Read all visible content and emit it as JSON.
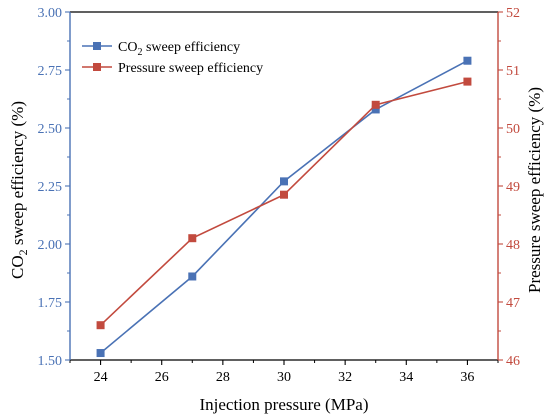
{
  "chart_data": {
    "type": "line",
    "x_label": "Injection pressure (MPa)",
    "y_left": {
      "label_prefix": "CO",
      "label_sub": "2",
      "label_suffix": " sweep efficiency (%)",
      "lim": [
        1.5,
        3.0
      ],
      "ticks": [
        "1.50",
        "1.75",
        "2.00",
        "2.25",
        "2.50",
        "2.75",
        "3.00"
      ]
    },
    "y_right": {
      "label": "Pressure sweep efficiency (%)",
      "lim": [
        46,
        52
      ],
      "ticks": [
        "46",
        "47",
        "48",
        "49",
        "50",
        "51",
        "52"
      ]
    },
    "x_lim": [
      23,
      37
    ],
    "x_ticks": [
      "24",
      "26",
      "28",
      "30",
      "32",
      "34",
      "36"
    ],
    "x": [
      24,
      27,
      30,
      33,
      36
    ],
    "series": [
      {
        "name_prefix": "CO",
        "name_sub": "2",
        "name_suffix": " sweep efficiency",
        "axis": "left",
        "marker": "square",
        "color": "#4a72b5",
        "values": [
          1.53,
          1.86,
          2.27,
          2.58,
          2.79
        ]
      },
      {
        "name": "Pressure sweep efficiency",
        "axis": "right",
        "marker": "square",
        "color": "#c24a3e",
        "values": [
          46.6,
          48.1,
          48.85,
          50.4,
          50.8
        ]
      }
    ],
    "colors": {
      "left_axis": "#4a72b5",
      "right_axis": "#c24a3e",
      "bottom_axis": "#000000"
    },
    "legend": "top-left",
    "grid": false
  }
}
